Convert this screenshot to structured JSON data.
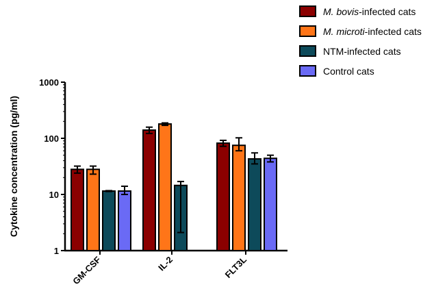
{
  "chart_data": {
    "type": "bar",
    "ylabel": "Cytokine concentration (pg/ml)",
    "xlabel": "",
    "yscale": "log",
    "ylim": [
      1,
      1000
    ],
    "yticks": [
      1,
      10,
      100,
      1000
    ],
    "ytick_labels": [
      "1",
      "10",
      "100",
      "1000"
    ],
    "categories": [
      "GM-CSF",
      "IL-2",
      "FLT3L"
    ],
    "legend_position": "top-right",
    "series": [
      {
        "name_parts": [
          {
            "text": "M. bovis",
            "italic": true
          },
          {
            "text": "-infected cats",
            "italic": false
          }
        ],
        "name": "M. bovis-infected cats",
        "color": "#8b0000",
        "values": [
          28,
          140,
          82
        ],
        "err_low": [
          24,
          122,
          72
        ],
        "err_high": [
          32,
          158,
          92
        ]
      },
      {
        "name_parts": [
          {
            "text": "M. microti",
            "italic": true
          },
          {
            "text": "-infected cats",
            "italic": false
          }
        ],
        "name": "M. microti-infected cats",
        "color": "#ff7518",
        "values": [
          28,
          180,
          75
        ],
        "err_low": [
          23,
          170,
          60
        ],
        "err_high": [
          32,
          188,
          102
        ]
      },
      {
        "name_parts": [
          {
            "text": "NTM-infected cats",
            "italic": false
          }
        ],
        "name": "NTM-infected cats",
        "color": "#0d4a5a",
        "values": [
          11.5,
          14.5,
          43
        ],
        "err_low": [
          11.3,
          2.1,
          35
        ],
        "err_high": [
          11.7,
          17,
          55
        ]
      },
      {
        "name_parts": [
          {
            "text": "Control cats",
            "italic": false
          }
        ],
        "name": "Control cats",
        "color": "#6a6af5",
        "values": [
          11.5,
          null,
          44
        ],
        "err_low": [
          10,
          null,
          38
        ],
        "err_high": [
          14,
          null,
          50
        ]
      }
    ]
  }
}
